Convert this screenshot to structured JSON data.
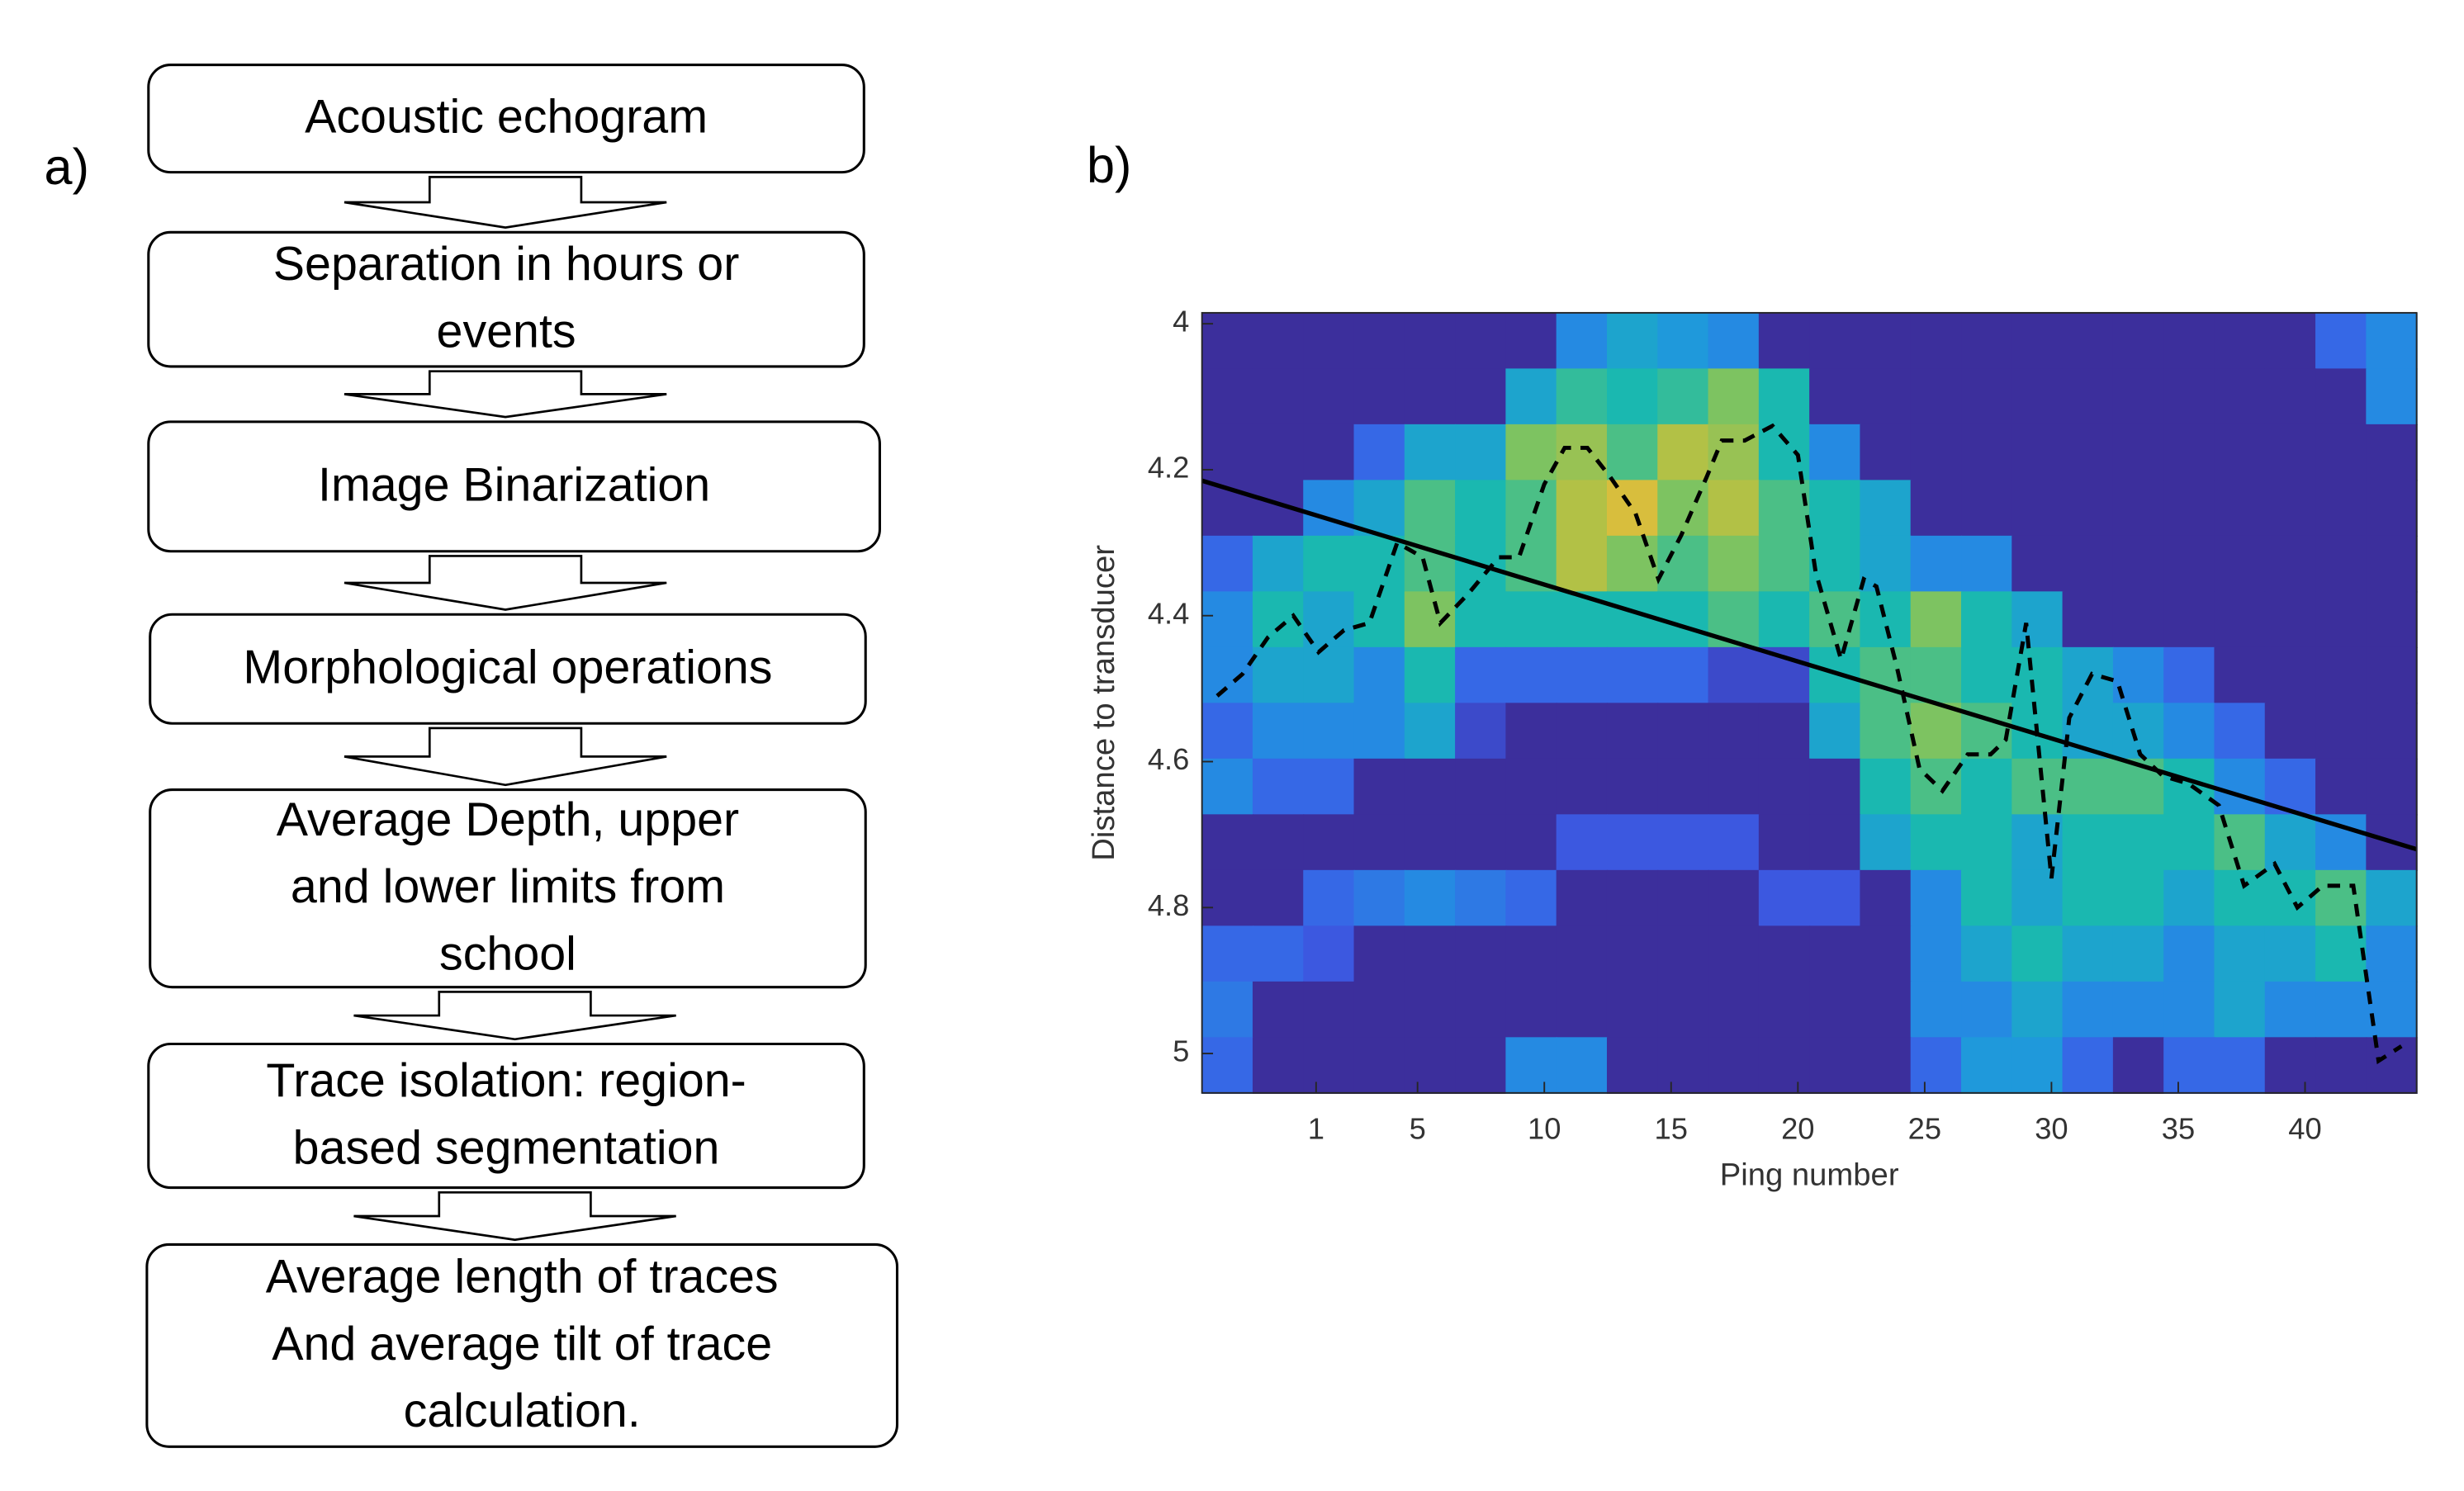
{
  "panel_labels": [
    "a)",
    "b)"
  ],
  "flowchart": {
    "nodes": [
      {
        "lines": [
          "Acoustic echogram"
        ]
      },
      {
        "lines": [
          "Separation in hours or",
          "events"
        ]
      },
      {
        "lines": [
          "Image Binarization"
        ]
      },
      {
        "lines": [
          "Morphological operations"
        ]
      },
      {
        "lines": [
          "Average Depth, upper",
          "and lower limits from",
          "school"
        ]
      },
      {
        "lines": [
          "Trace isolation: region-",
          "based segmentation"
        ]
      },
      {
        "lines": [
          "Average length of traces",
          "And average tilt of trace",
          "calculation."
        ]
      }
    ]
  },
  "chart_data": {
    "type": "heatmap",
    "xlabel": "Ping number",
    "ylabel": "Distance to transducer",
    "xlim": [
      -3.5,
      44.4
    ],
    "ylim": [
      3.985,
      5.054
    ],
    "y_inverted": true,
    "xticks": [
      1,
      5,
      10,
      15,
      20,
      25,
      30,
      35,
      40
    ],
    "yticks": [
      4,
      4.2,
      4.4,
      4.6,
      4.8,
      5
    ],
    "colormap": [
      "#3c2f9c",
      "#3c5ce8",
      "#1f96e0",
      "#1ab8b0",
      "#6cc46a",
      "#c3c03d",
      "#f7ba3c"
    ],
    "heatmap": {
      "values": [
        [
          0,
          0,
          0,
          0,
          0,
          0,
          0,
          0.3,
          0.4,
          0.35,
          0.3,
          0,
          0,
          0,
          0,
          0,
          0,
          0,
          0,
          0,
          0,
          0,
          0.2,
          0.3
        ],
        [
          0,
          0,
          0,
          0,
          0,
          0,
          0.4,
          0.55,
          0.5,
          0.55,
          0.7,
          0.5,
          0,
          0,
          0,
          0,
          0,
          0,
          0,
          0,
          0,
          0,
          0,
          0.3
        ],
        [
          0,
          0,
          0,
          0.2,
          0.4,
          0.4,
          0.7,
          0.75,
          0.6,
          0.8,
          0.75,
          0.5,
          0.3,
          0,
          0,
          0,
          0,
          0,
          0,
          0,
          0,
          0,
          0,
          0
        ],
        [
          0,
          0,
          0.3,
          0.4,
          0.6,
          0.5,
          0.6,
          0.8,
          0.9,
          0.7,
          0.8,
          0.6,
          0.5,
          0.4,
          0,
          0,
          0,
          0,
          0,
          0,
          0,
          0,
          0,
          0
        ],
        [
          0.2,
          0.4,
          0.5,
          0.5,
          0.6,
          0.5,
          0.6,
          0.8,
          0.7,
          0.6,
          0.7,
          0.6,
          0.5,
          0.4,
          0.3,
          0.3,
          0,
          0,
          0,
          0,
          0,
          0,
          0,
          0
        ],
        [
          0.3,
          0.5,
          0.4,
          0.5,
          0.7,
          0.5,
          0.5,
          0.5,
          0.5,
          0.5,
          0.6,
          0.5,
          0.6,
          0.5,
          0.7,
          0.5,
          0.4,
          0,
          0,
          0,
          0,
          0,
          0,
          0
        ],
        [
          0.3,
          0.4,
          0.4,
          0.3,
          0.5,
          0.2,
          0.2,
          0.2,
          0.2,
          0.2,
          0.1,
          0.1,
          0.5,
          0.6,
          0.6,
          0.5,
          0.5,
          0.4,
          0.3,
          0.2,
          0,
          0,
          0,
          0
        ],
        [
          0.2,
          0.3,
          0.3,
          0.3,
          0.4,
          0.1,
          0,
          0,
          0,
          0,
          0,
          0,
          0.4,
          0.6,
          0.7,
          0.6,
          0.5,
          0.4,
          0.4,
          0.3,
          0.2,
          0,
          0,
          0
        ],
        [
          0.3,
          0.2,
          0.2,
          0,
          0,
          0,
          0,
          0,
          0,
          0,
          0,
          0,
          0,
          0.5,
          0.6,
          0.5,
          0.6,
          0.6,
          0.6,
          0.5,
          0.3,
          0.2,
          0,
          0
        ],
        [
          0,
          0,
          0,
          0,
          0,
          0,
          0,
          0.15,
          0.15,
          0.15,
          0.15,
          0,
          0,
          0.4,
          0.5,
          0.5,
          0.4,
          0.5,
          0.5,
          0.5,
          0.6,
          0.4,
          0.3,
          0
        ],
        [
          0,
          0,
          0.2,
          0.25,
          0.3,
          0.25,
          0.2,
          0,
          0,
          0,
          0,
          0.15,
          0.15,
          0,
          0.3,
          0.5,
          0.4,
          0.5,
          0.5,
          0.4,
          0.5,
          0.5,
          0.6,
          0.4
        ],
        [
          0.2,
          0.2,
          0.15,
          0,
          0,
          0,
          0,
          0,
          0,
          0,
          0,
          0,
          0,
          0,
          0.3,
          0.4,
          0.5,
          0.4,
          0.4,
          0.3,
          0.4,
          0.4,
          0.5,
          0.3
        ],
        [
          0.25,
          0,
          0,
          0,
          0,
          0,
          0,
          0,
          0,
          0,
          0,
          0,
          0,
          0,
          0.3,
          0.3,
          0.4,
          0.3,
          0.3,
          0.3,
          0.4,
          0.3,
          0.3,
          0.3
        ],
        [
          0.2,
          0,
          0,
          0,
          0,
          0,
          0.3,
          0.3,
          0,
          0,
          0,
          0,
          0,
          0,
          0.2,
          0.35,
          0.35,
          0.2,
          0,
          0.2,
          0.2,
          0,
          0,
          0
        ]
      ]
    },
    "lines": [
      {
        "style": "dashed",
        "color": "#000000",
        "x": [
          -2.9,
          -1.9,
          -0.9,
          0.1,
          1.1,
          2.1,
          3.1,
          4.2,
          5.2,
          5.9,
          7.0,
          8.2,
          9.0,
          10.0,
          10.8,
          11.7,
          12.6,
          13.6,
          14.5,
          15.4,
          16.4,
          17.0,
          17.9,
          19.0,
          20.0,
          20.7,
          21.7,
          22.6,
          23.1,
          23.9,
          24.8,
          25.7,
          26.7,
          27.6,
          28.2,
          29.0,
          30.0,
          30.7,
          31.6,
          32.6,
          33.5,
          34.4,
          35.4,
          36.6,
          37.6,
          38.8,
          39.7,
          40.7,
          41.9,
          42.9,
          43.8
        ],
        "y": [
          4.51,
          4.48,
          4.43,
          4.4,
          4.45,
          4.42,
          4.41,
          4.3,
          4.32,
          4.41,
          4.37,
          4.32,
          4.32,
          4.22,
          4.17,
          4.17,
          4.21,
          4.26,
          4.35,
          4.29,
          4.21,
          4.16,
          4.16,
          4.14,
          4.18,
          4.34,
          4.46,
          4.35,
          4.36,
          4.47,
          4.61,
          4.64,
          4.59,
          4.59,
          4.57,
          4.41,
          4.76,
          4.54,
          4.48,
          4.49,
          4.59,
          4.62,
          4.63,
          4.66,
          4.77,
          4.74,
          4.8,
          4.77,
          4.77,
          5.01,
          4.99
        ]
      },
      {
        "style": "solid",
        "color": "#000000",
        "x": [
          -3.5,
          44.4
        ],
        "y": [
          4.215,
          4.72
        ]
      }
    ]
  }
}
